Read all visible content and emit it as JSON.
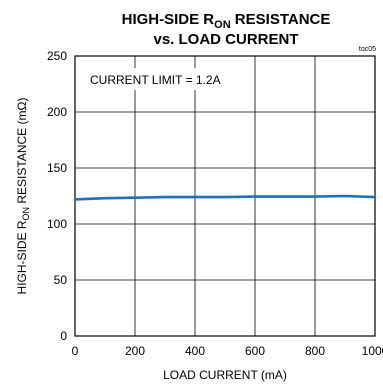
{
  "chart_data": {
    "type": "line",
    "title_line1_main": "HIGH-SIDE R",
    "title_line1_sub": "ON",
    "title_line1_tail": " RESISTANCE",
    "title_line2": "vs. LOAD CURRENT",
    "figure_code": "toc05",
    "annotation": "CURRENT LIMIT = 1.2A",
    "xlabel": "LOAD CURRENT (mA)",
    "ylabel_main": "HIGH-SIDE R",
    "ylabel_sub": "ON",
    "ylabel_tail": " RESISTANCE (mΩ)",
    "xlim": [
      0,
      1000
    ],
    "ylim": [
      0,
      250
    ],
    "x_ticks": [
      "0",
      "200",
      "400",
      "600",
      "800",
      "1000"
    ],
    "y_ticks": [
      "0",
      "50",
      "100",
      "150",
      "200",
      "250"
    ],
    "grid": true,
    "series_color": "#1f6fbf",
    "x": [
      0,
      100,
      200,
      300,
      400,
      500,
      600,
      700,
      800,
      900,
      1000
    ],
    "y": [
      122,
      123,
      123.5,
      124,
      124,
      124,
      124.5,
      124.5,
      124.5,
      125,
      124
    ]
  }
}
